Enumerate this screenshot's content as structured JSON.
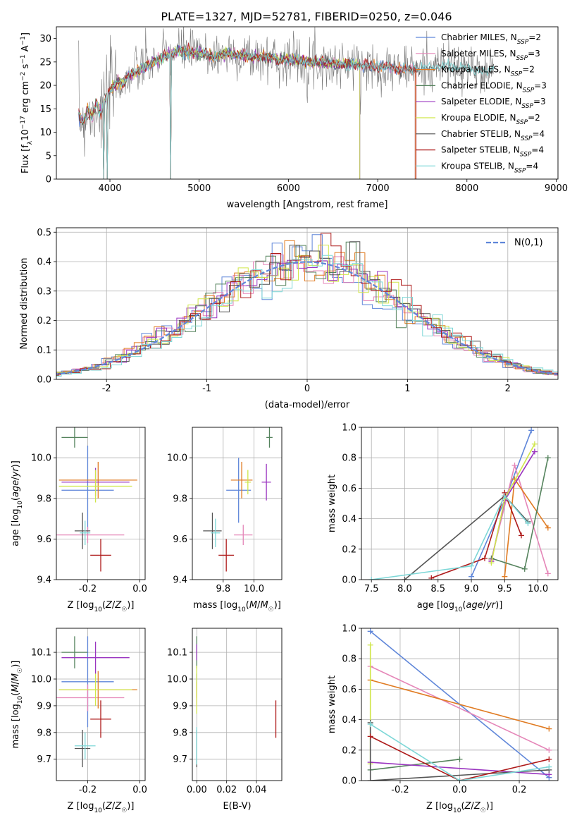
{
  "figure": {
    "title": "PLATE=1327, MJD=52781, FIBERID=0250, z=0.046"
  },
  "colors": {
    "Chabrier MILES": "#5f86d9",
    "Salpeter MILES": "#e586b8",
    "Kroupa MILES": "#e07b22",
    "Chabrier ELODIE": "#55835d",
    "Salpeter ELODIE": "#9a35c0",
    "Kroupa ELODIE": "#d0e64a",
    "Chabrier STELIB": "#555555",
    "Salpeter STELIB": "#ae1a1a",
    "Kroupa STELIB": "#7dd7d7",
    "normal_curve": "#5f86d9"
  },
  "chart_data": [
    {
      "id": "spectrum",
      "type": "line",
      "xlabel": "wavelength [Angstrom, rest frame]",
      "ylabel": "Flux [fλ10⁻¹⁷ erg cm⁻² s⁻¹ A⁻¹]",
      "xlim": [
        3400,
        9020
      ],
      "ylim": [
        0,
        32.5
      ],
      "xticks": [
        4000,
        5000,
        6000,
        7000,
        8000,
        9000
      ],
      "yticks": [
        0,
        5,
        10,
        15,
        20,
        25,
        30
      ],
      "grid": false,
      "legend_position": "right",
      "legend": [
        {
          "name": "Chabrier MILES",
          "label": "Chabrier MILES, N",
          "sub": "SSP",
          "suffix": "=2"
        },
        {
          "name": "Salpeter MILES",
          "label": "Salpeter MILES, N",
          "sub": "SSP",
          "suffix": "=3"
        },
        {
          "name": "Kroupa MILES",
          "label": "Kroupa MILES, N",
          "sub": "SSP",
          "suffix": "=2"
        },
        {
          "name": "Chabrier ELODIE",
          "label": "Chabrier ELODIE, N",
          "sub": "SSP",
          "suffix": "=3"
        },
        {
          "name": "Salpeter ELODIE",
          "label": "Salpeter ELODIE, N",
          "sub": "SSP",
          "suffix": "=3"
        },
        {
          "name": "Kroupa ELODIE",
          "label": "Kroupa ELODIE, N",
          "sub": "SSP",
          "suffix": "=2"
        },
        {
          "name": "Chabrier STELIB",
          "label": "Chabrier STELIB, N",
          "sub": "SSP",
          "suffix": "=4"
        },
        {
          "name": "Salpeter STELIB",
          "label": "Salpeter STELIB, N",
          "sub": "SSP",
          "suffix": "=4"
        },
        {
          "name": "Kroupa STELIB",
          "label": "Kroupa STELIB, N",
          "sub": "SSP",
          "suffix": "=4"
        }
      ],
      "data_envelope": [
        [
          3650,
          14
        ],
        [
          3700,
          12
        ],
        [
          3750,
          15
        ],
        [
          3800,
          13
        ],
        [
          3850,
          16
        ],
        [
          3900,
          14
        ],
        [
          3950,
          17
        ],
        [
          4000,
          19
        ],
        [
          4050,
          20
        ],
        [
          4100,
          21
        ],
        [
          4150,
          20
        ],
        [
          4200,
          22
        ],
        [
          4300,
          23
        ],
        [
          4400,
          24
        ],
        [
          4500,
          25
        ],
        [
          4600,
          26
        ],
        [
          4700,
          27
        ],
        [
          4800,
          27.5
        ],
        [
          4900,
          27
        ],
        [
          5000,
          27
        ],
        [
          5100,
          26.5
        ],
        [
          5200,
          26
        ],
        [
          5300,
          27
        ],
        [
          5400,
          26.5
        ],
        [
          5500,
          26.5
        ],
        [
          5600,
          26
        ],
        [
          5700,
          26
        ],
        [
          5800,
          26
        ],
        [
          5900,
          25.5
        ],
        [
          6000,
          25.5
        ],
        [
          6100,
          25.5
        ],
        [
          6200,
          25
        ],
        [
          6300,
          25
        ],
        [
          6400,
          25
        ],
        [
          6500,
          24.5
        ],
        [
          6600,
          24.5
        ],
        [
          6700,
          24.5
        ],
        [
          6800,
          24.5
        ],
        [
          6900,
          24
        ],
        [
          7000,
          24
        ],
        [
          7100,
          24
        ],
        [
          7200,
          23.5
        ],
        [
          7300,
          23.5
        ],
        [
          7400,
          23.5
        ],
        [
          7500,
          23.5
        ],
        [
          7600,
          24
        ],
        [
          7700,
          24
        ],
        [
          7800,
          24
        ],
        [
          7900,
          23.5
        ],
        [
          8000,
          23.5
        ],
        [
          8100,
          23
        ],
        [
          8200,
          23
        ],
        [
          8300,
          23.5
        ]
      ],
      "model_cutoffs": [
        {
          "name": "Chabrier MILES",
          "end": 7420
        },
        {
          "name": "Salpeter MILES",
          "end": 7420
        },
        {
          "name": "Kroupa MILES",
          "end": 7420
        },
        {
          "name": "Chabrier ELODIE",
          "end": 6800
        },
        {
          "name": "Salpeter ELODIE",
          "end": 6800
        },
        {
          "name": "Kroupa ELODIE",
          "end": 6800
        },
        {
          "name": "Chabrier STELIB",
          "end": 9000
        },
        {
          "name": "Salpeter STELIB",
          "end": 7430
        },
        {
          "name": "Kroupa STELIB",
          "end": 9000
        }
      ],
      "absorption_dips": [
        {
          "x": 3930,
          "depth": 0
        },
        {
          "x": 3970,
          "depth": 0
        },
        {
          "x": 4680,
          "depth": 0
        }
      ]
    },
    {
      "id": "residuals",
      "type": "histogram",
      "xlabel": "(data-model)/error",
      "ylabel": "Normed distribution",
      "xlim": [
        -2.5,
        2.5
      ],
      "ylim": [
        0,
        0.515
      ],
      "xticks": [
        -2,
        -1,
        0,
        1,
        2
      ],
      "yticks": [
        0.0,
        0.1,
        0.2,
        0.3,
        0.4,
        0.5
      ],
      "grid": true,
      "legend": [
        {
          "label": "N(0,1)"
        }
      ],
      "legend_position": "upper right",
      "normal_curve": {
        "mean": 0,
        "std": 1,
        "linestyle": "dashed"
      },
      "bin_width": 0.1
    },
    {
      "id": "age_vs_Z",
      "type": "errorbar",
      "xlabel": "Z [log10(Z/Z☉)]",
      "ylabel": "age  [log10(age/yr)]",
      "xlim": [
        -0.32,
        0.02
      ],
      "ylim": [
        9.4,
        10.15
      ],
      "xticks": [
        -0.2,
        0.0
      ],
      "yticks": [
        9.4,
        9.6,
        9.8,
        10.0
      ],
      "grid": true,
      "points": [
        {
          "name": "Chabrier MILES",
          "x": -0.2,
          "xerr": 0.1,
          "y": 9.84,
          "yerr": 0.22
        },
        {
          "name": "Salpeter MILES",
          "x": -0.2,
          "xerr": 0.14,
          "y": 9.62,
          "yerr": 0.04
        },
        {
          "name": "Kroupa MILES",
          "x": -0.16,
          "xerr": 0.15,
          "y": 9.89,
          "yerr": 0.09
        },
        {
          "name": "Chabrier ELODIE",
          "x": -0.25,
          "xerr": 0.05,
          "y": 10.1,
          "yerr": 0.05
        },
        {
          "name": "Salpeter ELODIE",
          "x": -0.17,
          "xerr": 0.13,
          "y": 9.88,
          "yerr": 0.07
        },
        {
          "name": "Kroupa ELODIE",
          "x": -0.17,
          "xerr": 0.14,
          "y": 9.86,
          "yerr": 0.08
        },
        {
          "name": "Chabrier STELIB",
          "x": -0.22,
          "xerr": 0.03,
          "y": 9.64,
          "yerr": 0.09
        },
        {
          "name": "Salpeter STELIB",
          "x": -0.15,
          "xerr": 0.04,
          "y": 9.52,
          "yerr": 0.08
        },
        {
          "name": "Kroupa STELIB",
          "x": -0.21,
          "xerr": 0.02,
          "y": 9.63,
          "yerr": 0.06
        }
      ]
    },
    {
      "id": "age_vs_mass",
      "type": "errorbar",
      "xlabel": "mass [log10(M/M☉)]",
      "ylabel": "",
      "xlim": [
        9.6,
        10.18
      ],
      "ylim": [
        9.4,
        10.15
      ],
      "xticks": [
        9.8,
        10.0
      ],
      "yticks": [
        9.4,
        9.6,
        9.8,
        10.0
      ],
      "grid": true,
      "points": [
        {
          "name": "Chabrier MILES",
          "x": 9.9,
          "xerr": 0.08,
          "y": 9.84,
          "yerr": 0.16
        },
        {
          "name": "Salpeter MILES",
          "x": 9.93,
          "xerr": 0.06,
          "y": 9.62,
          "yerr": 0.05
        },
        {
          "name": "Kroupa MILES",
          "x": 9.92,
          "xerr": 0.07,
          "y": 9.89,
          "yerr": 0.09
        },
        {
          "name": "Chabrier ELODIE",
          "x": 10.1,
          "xerr": 0.02,
          "y": 10.1,
          "yerr": 0.05
        },
        {
          "name": "Salpeter ELODIE",
          "x": 10.08,
          "xerr": 0.03,
          "y": 9.88,
          "yerr": 0.09
        },
        {
          "name": "Kroupa ELODIE",
          "x": 9.96,
          "xerr": 0.02,
          "y": 9.88,
          "yerr": 0.06
        },
        {
          "name": "Chabrier STELIB",
          "x": 9.73,
          "xerr": 0.06,
          "y": 9.64,
          "yerr": 0.09
        },
        {
          "name": "Salpeter STELIB",
          "x": 9.82,
          "xerr": 0.05,
          "y": 9.52,
          "yerr": 0.08
        },
        {
          "name": "Kroupa STELIB",
          "x": 9.75,
          "xerr": 0.03,
          "y": 9.63,
          "yerr": 0.07
        }
      ]
    },
    {
      "id": "mass_weight_vs_age",
      "type": "line",
      "xlabel": "age  [log10(age/yr)]",
      "ylabel": "mass weight",
      "xlim": [
        7.35,
        10.3
      ],
      "ylim": [
        0,
        1.0
      ],
      "xticks": [
        7.5,
        8.0,
        8.5,
        9.0,
        9.5,
        10.0
      ],
      "yticks": [
        0.0,
        0.2,
        0.4,
        0.6,
        0.8,
        1.0
      ],
      "grid": true,
      "series": [
        {
          "name": "Chabrier MILES",
          "x": [
            9.0,
            9.5,
            9.9
          ],
          "y": [
            0.02,
            0.52,
            0.98
          ]
        },
        {
          "name": "Salpeter MILES",
          "x": [
            9.3,
            9.65,
            10.15
          ],
          "y": [
            0.13,
            0.75,
            0.04
          ]
        },
        {
          "name": "Kroupa MILES",
          "x": [
            9.5,
            9.65,
            10.15
          ],
          "y": [
            0.02,
            0.66,
            0.34
          ]
        },
        {
          "name": "Chabrier ELODIE",
          "x": [
            9.3,
            9.8,
            10.15
          ],
          "y": [
            0.14,
            0.07,
            0.8
          ]
        },
        {
          "name": "Salpeter ELODIE",
          "x": [
            9.3,
            9.5,
            9.95
          ],
          "y": [
            0.12,
            0.52,
            0.84
          ]
        },
        {
          "name": "Kroupa ELODIE",
          "x": [
            9.3,
            9.5,
            9.95
          ],
          "y": [
            0.11,
            0.53,
            0.89
          ]
        },
        {
          "name": "Chabrier STELIB",
          "x": [
            8.0,
            9.5,
            9.85
          ],
          "y": [
            0.0,
            0.55,
            0.38
          ]
        },
        {
          "name": "Salpeter STELIB",
          "x": [
            8.4,
            9.2,
            9.5,
            9.75
          ],
          "y": [
            0.01,
            0.14,
            0.57,
            0.29
          ]
        },
        {
          "name": "Kroupa STELIB",
          "x": [
            7.5,
            9.0,
            9.5,
            9.85
          ],
          "y": [
            0.0,
            0.09,
            0.55,
            0.37
          ]
        }
      ]
    },
    {
      "id": "mass_vs_Z",
      "type": "errorbar",
      "xlabel": "Z [log10(Z/Z☉)]",
      "ylabel": "mass [log10(M/M☉)]",
      "xlim": [
        -0.32,
        0.02
      ],
      "ylim": [
        9.62,
        10.19
      ],
      "xticks": [
        -0.2,
        0.0
      ],
      "yticks": [
        9.7,
        9.8,
        9.9,
        10.0,
        10.1
      ],
      "grid": true,
      "points": [
        {
          "name": "Chabrier MILES",
          "x": -0.2,
          "xerr": 0.1,
          "y": 9.99,
          "yerr": 0.17
        },
        {
          "name": "Salpeter MILES",
          "x": -0.2,
          "xerr": 0.14,
          "y": 9.93,
          "yerr": 0.05
        },
        {
          "name": "Kroupa MILES",
          "x": -0.16,
          "xerr": 0.15,
          "y": 9.96,
          "yerr": 0.07
        },
        {
          "name": "Chabrier ELODIE",
          "x": -0.25,
          "xerr": 0.05,
          "y": 10.1,
          "yerr": 0.06
        },
        {
          "name": "Salpeter ELODIE",
          "x": -0.17,
          "xerr": 0.13,
          "y": 10.08,
          "yerr": 0.06
        },
        {
          "name": "Kroupa ELODIE",
          "x": -0.17,
          "xerr": 0.14,
          "y": 9.96,
          "yerr": 0.06
        },
        {
          "name": "Chabrier STELIB",
          "x": -0.22,
          "xerr": 0.03,
          "y": 9.74,
          "yerr": 0.07
        },
        {
          "name": "Salpeter STELIB",
          "x": -0.15,
          "xerr": 0.04,
          "y": 9.85,
          "yerr": 0.07
        },
        {
          "name": "Kroupa STELIB",
          "x": -0.21,
          "xerr": 0.04,
          "y": 9.75,
          "yerr": 0.05
        }
      ]
    },
    {
      "id": "mass_vs_EBV",
      "type": "errorbar",
      "xlabel": "E(B-V)",
      "ylabel": "",
      "xlim": [
        -0.003,
        0.057
      ],
      "ylim": [
        9.62,
        10.19
      ],
      "xticks": [
        0.0,
        0.02,
        0.04
      ],
      "yticks": [
        9.7,
        9.8,
        9.9,
        10.0,
        10.1
      ],
      "grid": true,
      "points": [
        {
          "name": "Chabrier MILES",
          "x": 0.0,
          "y": 9.99,
          "yerr": 0.03
        },
        {
          "name": "Salpeter MILES",
          "x": 0.0,
          "y": 9.93,
          "yerr": 0.03
        },
        {
          "name": "Kroupa MILES",
          "x": 0.0,
          "y": 9.96,
          "yerr": 0.03
        },
        {
          "name": "Chabrier ELODIE",
          "x": 0.0,
          "y": 10.1,
          "yerr": 0.06
        },
        {
          "name": "Salpeter ELODIE",
          "x": 0.0,
          "y": 10.1,
          "yerr": 0.03
        },
        {
          "name": "Kroupa ELODIE",
          "x": 0.0,
          "y": 9.96,
          "yerr": 0.09
        },
        {
          "name": "Chabrier STELIB",
          "x": 0.0,
          "y": 9.74,
          "yerr": 0.07
        },
        {
          "name": "Salpeter STELIB",
          "x": 0.053,
          "y": 9.85,
          "yerr": 0.07
        },
        {
          "name": "Kroupa STELIB",
          "x": 0.0,
          "y": 9.75,
          "yerr": 0.07
        }
      ]
    },
    {
      "id": "mass_weight_vs_Z",
      "type": "line",
      "xlabel": "Z [log10(Z/Z☉)]",
      "ylabel": "mass weight",
      "xlim": [
        -0.33,
        0.33
      ],
      "ylim": [
        0,
        1.0
      ],
      "xticks": [
        -0.2,
        0.0,
        0.2
      ],
      "yticks": [
        0.0,
        0.2,
        0.4,
        0.6,
        0.8,
        1.0
      ],
      "grid": true,
      "series": [
        {
          "name": "Chabrier MILES",
          "x": [
            -0.3,
            0.3
          ],
          "y": [
            0.98,
            0.02
          ]
        },
        {
          "name": "Salpeter MILES",
          "x": [
            -0.3,
            0.3
          ],
          "y": [
            0.75,
            0.2
          ]
        },
        {
          "name": "Kroupa MILES",
          "x": [
            -0.3,
            0.3
          ],
          "y": [
            0.66,
            0.34
          ]
        },
        {
          "name": "Chabrier ELODIE",
          "x": [
            -0.3,
            0.0
          ],
          "y": [
            0.07,
            0.14
          ]
        },
        {
          "name": "Salpeter ELODIE",
          "x": [
            -0.3,
            0.3
          ],
          "y": [
            0.12,
            0.04
          ]
        },
        {
          "name": "Kroupa ELODIE",
          "x": [
            -0.3,
            -0.3
          ],
          "y": [
            0.89,
            0.11
          ]
        },
        {
          "name": "Chabrier STELIB",
          "x": [
            -0.3,
            -0.3,
            0.3
          ],
          "y": [
            0.38,
            0.0,
            0.07
          ]
        },
        {
          "name": "Salpeter STELIB",
          "x": [
            -0.3,
            0.0,
            0.3
          ],
          "y": [
            0.29,
            0.0,
            0.14
          ]
        },
        {
          "name": "Kroupa STELIB",
          "x": [
            -0.3,
            0.0,
            0.3
          ],
          "y": [
            0.37,
            0.0,
            0.09
          ]
        }
      ]
    }
  ]
}
